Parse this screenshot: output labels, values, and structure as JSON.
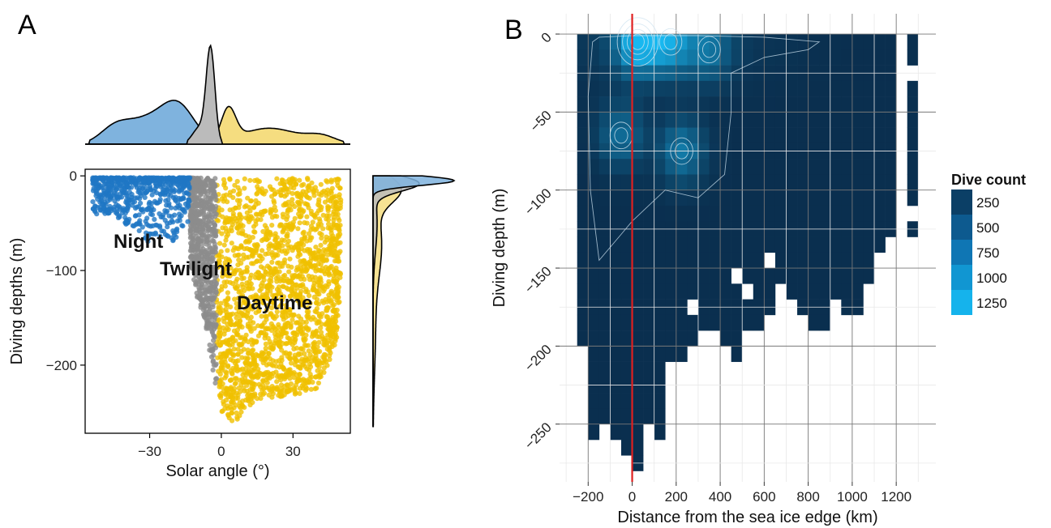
{
  "panels": {
    "a_label": "A",
    "b_label": "B"
  },
  "chart_data": [
    {
      "type": "scatter",
      "panel": "A",
      "xlabel": "Solar angle (°)",
      "ylabel": "Diving depths (m)",
      "xlim": [
        -57,
        54
      ],
      "ylim": [
        -272,
        7
      ],
      "xticks": [
        -30,
        0,
        30
      ],
      "yticks": [
        0,
        -100,
        -200
      ],
      "xtick_labels": [
        "−30",
        "0",
        "30"
      ],
      "ytick_labels": [
        "0",
        "−100",
        "−200"
      ],
      "grid": false,
      "series": [
        {
          "name": "Night",
          "color": "#1f77c4",
          "x_range": [
            -54,
            -13
          ],
          "min_depth_samples": [
            [
              -54,
              -40
            ],
            [
              -45,
              -42
            ],
            [
              -35,
              -60
            ],
            [
              -30,
              -72
            ],
            [
              -25,
              -65
            ],
            [
              -20,
              -70
            ],
            [
              -15,
              -50
            ]
          ]
        },
        {
          "name": "Twilight",
          "color": "#8c8c8c",
          "x_range": [
            -13,
            -2
          ],
          "min_depth_samples": [
            [
              -13,
              -90
            ],
            [
              -10,
              -130
            ],
            [
              -7,
              -150
            ],
            [
              -4,
              -200
            ],
            [
              -2,
              -230
            ]
          ]
        },
        {
          "name": "Daytime",
          "color": "#f0c000",
          "x_range": [
            -2,
            50
          ],
          "min_depth_samples": [
            [
              0,
              -250
            ],
            [
              5,
              -265
            ],
            [
              10,
              -245
            ],
            [
              20,
              -235
            ],
            [
              30,
              -232
            ],
            [
              40,
              -225
            ],
            [
              48,
              -180
            ],
            [
              50,
              -120
            ]
          ]
        }
      ],
      "annotations": [
        "Night",
        "Twilight",
        "Daytime"
      ],
      "marginal_densities": {
        "top": [
          {
            "name": "Night",
            "color": "#7fb3de",
            "peak_x": -20,
            "peak": 0.42
          },
          {
            "name": "Twilight",
            "color": "#bbbbbb",
            "peak_x": -5,
            "peak": 1.0
          },
          {
            "name": "Daytime",
            "color": "#f5dd80",
            "peak_x": 3,
            "peak": 0.38
          }
        ],
        "right": [
          {
            "name": "Night",
            "color": "#7fb3de",
            "peak_depth": -5,
            "peak": 1.0
          },
          {
            "name": "Twilight",
            "color": "#bbbbbb",
            "peak_depth": -8,
            "peak": 0.55
          },
          {
            "name": "Daytime",
            "color": "#f5dd80",
            "peak_depth": -12,
            "peak": 0.45
          }
        ]
      }
    },
    {
      "type": "heatmap",
      "panel": "B",
      "xlabel": "Distance from the sea ice edge (km)",
      "ylabel": "Diving depth (m)",
      "xlim": [
        -330,
        1380
      ],
      "ylim": [
        -287,
        13
      ],
      "xticks": [
        -200,
        0,
        200,
        400,
        600,
        800,
        1000,
        1200
      ],
      "xtick_labels": [
        "−200",
        "0",
        "200",
        "400",
        "600",
        "800",
        "1000",
        "1200"
      ],
      "yticks": [
        0,
        -50,
        -100,
        -150,
        -200,
        -250
      ],
      "ytick_labels": [
        "0",
        "−50",
        "−100",
        "−150",
        "−200",
        "−250"
      ],
      "grid": true,
      "bin_width_km": 50,
      "bin_height_m": 10,
      "reference_line": {
        "x": 0,
        "color": "#e02020"
      },
      "legend": {
        "title": "Dive count",
        "placement": "right",
        "entries": [
          {
            "label": "250",
            "color": "#0b3f66"
          },
          {
            "label": "500",
            "color": "#0d5a8f"
          },
          {
            "label": "750",
            "color": "#0f76b4"
          },
          {
            "label": "1000",
            "color": "#1196d2"
          },
          {
            "label": "1250",
            "color": "#15b3ec"
          }
        ]
      },
      "bottom_profile": [
        [
          -250,
          -200
        ],
        [
          -200,
          -260
        ],
        [
          -150,
          -250
        ],
        [
          -100,
          -260
        ],
        [
          -50,
          -270
        ],
        [
          0,
          -280
        ],
        [
          50,
          -250
        ],
        [
          100,
          -260
        ],
        [
          150,
          -210
        ],
        [
          200,
          -210
        ],
        [
          250,
          -200
        ],
        [
          300,
          -200
        ],
        [
          350,
          -200
        ],
        [
          400,
          -200
        ],
        [
          450,
          -210
        ],
        [
          500,
          -190
        ],
        [
          550,
          -200
        ],
        [
          600,
          -180
        ],
        [
          650,
          -170
        ],
        [
          700,
          -170
        ],
        [
          750,
          -190
        ],
        [
          800,
          -190
        ],
        [
          850,
          -190
        ],
        [
          900,
          -170
        ],
        [
          950,
          -180
        ],
        [
          1000,
          -180
        ],
        [
          1050,
          -160
        ],
        [
          1100,
          -140
        ],
        [
          1250,
          -120
        ]
      ],
      "hotspots": [
        {
          "x": 25,
          "depth": -5,
          "count": 1250
        },
        {
          "x": 175,
          "depth": -5,
          "count": 900
        },
        {
          "x": 225,
          "depth": -75,
          "count": 700
        },
        {
          "x": -50,
          "depth": -65,
          "count": 600
        },
        {
          "x": 350,
          "depth": -10,
          "count": 550
        }
      ]
    }
  ]
}
